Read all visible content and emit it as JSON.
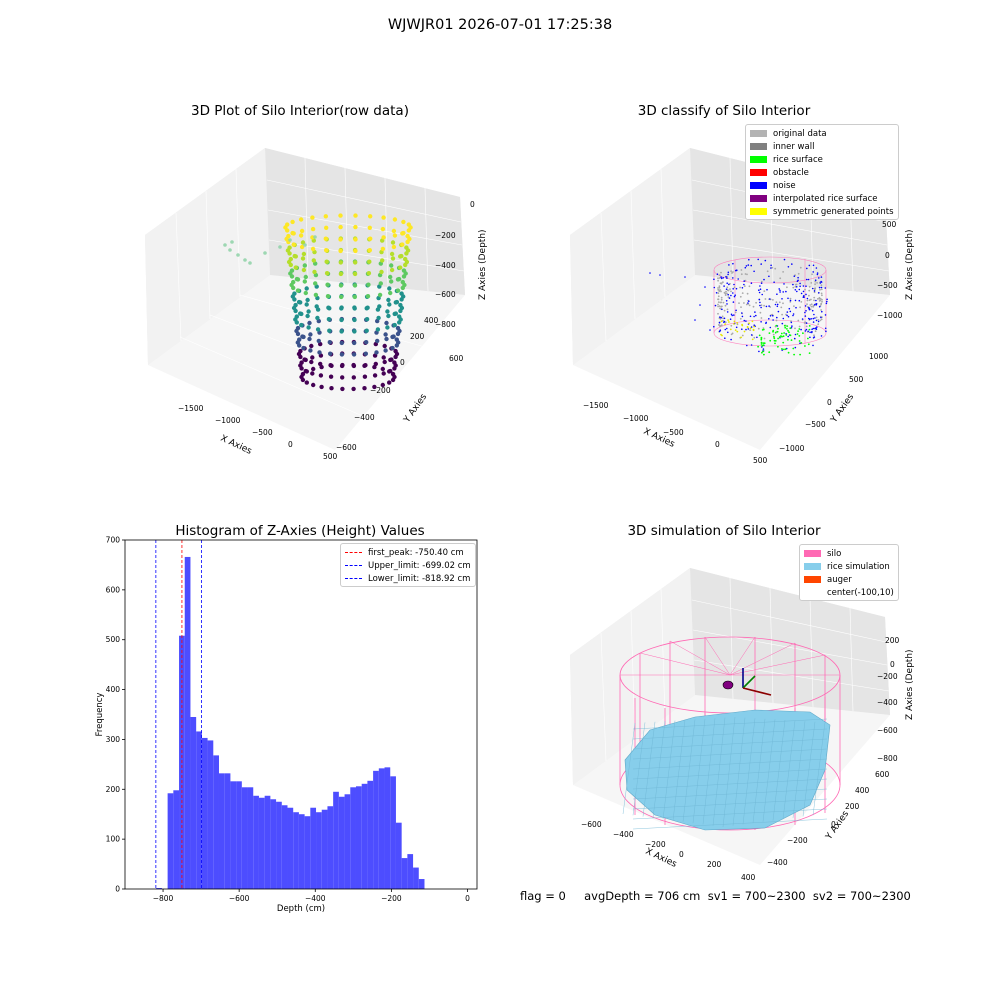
{
  "suptitle": "WJWJR01 2026-07-01 17:25:38",
  "footer": "flag = 0     avgDepth = 706 cm  sv1 = 700~2300  sv2 = 700~2300",
  "colors": {
    "hist_bar": "#4d4dff",
    "first_peak": "#ff0000",
    "limit_line": "#0000ff",
    "silo": "#ff69b4",
    "rice_sim": "#87ceeb",
    "auger": "#ff4500",
    "grey_data": "#b3b3b3",
    "inner_wall": "#808080",
    "rice_surface": "#00ff00",
    "obstacle": "#ff0000",
    "noise": "#0000ff",
    "interp": "#800080",
    "symmetric": "#ffff00"
  },
  "chart_data": [
    {
      "type": "scatter",
      "title": "3D Plot of Silo Interior(row data)",
      "xlabel": "X Axies",
      "ylabel": "Y Axies",
      "zlabel": "Z Axies (Depth)",
      "xticks": [
        "−1500",
        "−1000",
        "−500",
        "0",
        "500"
      ],
      "yticks": [
        "−600",
        "−400",
        "−200",
        "0",
        "200",
        "400",
        "600"
      ],
      "zticks": [
        "−800",
        "−600",
        "−400",
        "−200",
        "0"
      ],
      "colormap": "viridis"
    },
    {
      "type": "scatter",
      "title": "3D classify of Silo Interior",
      "xlabel": "X Axies",
      "ylabel": "Y Axies",
      "zlabel": "Z Axies (Depth)",
      "xticks": [
        "−1500",
        "−1000",
        "−500",
        "0",
        "500"
      ],
      "yticks": [
        "−1000",
        "−500",
        "0",
        "500",
        "1000"
      ],
      "zticks": [
        "−1000",
        "−500",
        "0",
        "500"
      ],
      "legend": [
        {
          "label": "original data",
          "color": "#b3b3b3"
        },
        {
          "label": "inner wall",
          "color": "#808080"
        },
        {
          "label": "rice surface",
          "color": "#00ff00"
        },
        {
          "label": "obstacle",
          "color": "#ff0000"
        },
        {
          "label": "noise",
          "color": "#0000ff"
        },
        {
          "label": "interpolated rice surface",
          "color": "#800080"
        },
        {
          "label": "symmetric generated points",
          "color": "#ffff00"
        }
      ]
    },
    {
      "type": "bar",
      "title": "Histogram of Z-Axies (Height) Values",
      "xlabel": "Depth (cm)",
      "ylabel": "Frequency",
      "xlim": [
        -900,
        25
      ],
      "ylim": [
        0,
        700
      ],
      "xticks": [
        "−800",
        "−600",
        "−400",
        "−200",
        "0"
      ],
      "xtick_values": [
        -800,
        -600,
        -400,
        -200,
        0
      ],
      "yticks": [
        "0",
        "100",
        "200",
        "300",
        "400",
        "500",
        "600",
        "700"
      ],
      "ytick_values": [
        0,
        100,
        200,
        300,
        400,
        500,
        600,
        700
      ],
      "bin_width": 15,
      "bin_start": -818,
      "values": [
        2,
        0,
        192,
        198,
        508,
        666,
        345,
        316,
        303,
        298,
        268,
        232,
        232,
        216,
        216,
        204,
        204,
        187,
        183,
        187,
        180,
        175,
        168,
        163,
        154,
        150,
        146,
        163,
        154,
        159,
        166,
        195,
        185,
        190,
        204,
        206,
        211,
        217,
        237,
        242,
        244,
        226,
        133,
        62,
        70,
        43,
        20
      ],
      "lines": [
        {
          "label": "first_peak: -750.40 cm",
          "x": -750.4,
          "color": "#ff0000"
        },
        {
          "label": "Upper_limit: -699.02 cm",
          "x": -699.02,
          "color": "#0000ff"
        },
        {
          "label": "Lower_limit: -818.92 cm",
          "x": -818.92,
          "color": "#0000ff"
        }
      ]
    },
    {
      "type": "area",
      "title": "3D simulation of Silo Interior",
      "xlabel": "X Axies",
      "ylabel": "Y Axies",
      "zlabel": "Z Axies (Depth)",
      "xticks": [
        "−600",
        "−400",
        "−200",
        "0",
        "200",
        "400"
      ],
      "yticks": [
        "−400",
        "−200",
        "0",
        "200",
        "400",
        "600"
      ],
      "zticks": [
        "−800",
        "−600",
        "−400",
        "−200",
        "0",
        "200"
      ],
      "legend": [
        {
          "label": "silo",
          "color": "#ff69b4"
        },
        {
          "label": "rice simulation",
          "color": "#87ceeb"
        },
        {
          "label": "auger",
          "color": "#ff4500"
        },
        {
          "label": "center(-100,10)",
          "color": ""
        }
      ]
    }
  ]
}
